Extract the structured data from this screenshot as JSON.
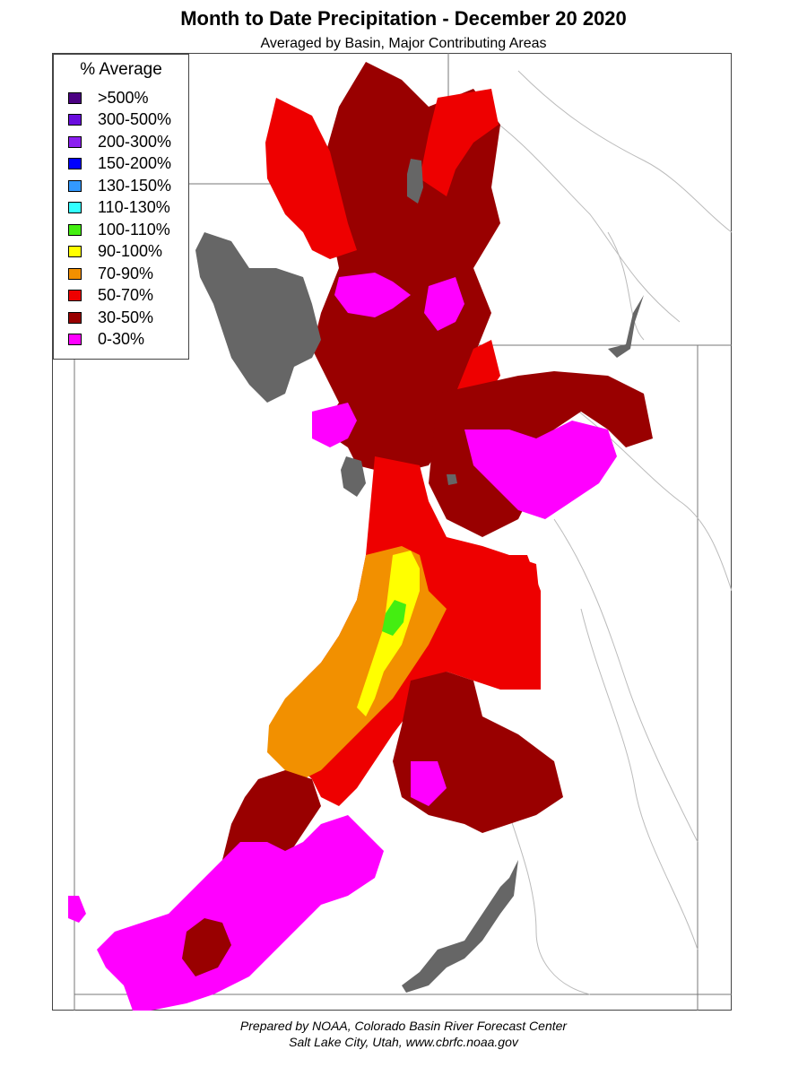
{
  "title": "Month to Date Precipitation - December 20 2020",
  "subtitle": "Averaged by Basin, Major Contributing Areas",
  "legend": {
    "title": "% Average",
    "items": [
      {
        "label": ">500%",
        "color": "#4b0082"
      },
      {
        "label": "300-500%",
        "color": "#6a0dde"
      },
      {
        "label": "200-300%",
        "color": "#8b1ff0"
      },
      {
        "label": "150-200%",
        "color": "#0000ff"
      },
      {
        "label": "130-150%",
        "color": "#3399ff"
      },
      {
        "label": "110-130%",
        "color": "#33ffff"
      },
      {
        "label": "100-110%",
        "color": "#44ee11"
      },
      {
        "label": "90-100%",
        "color": "#ffff00"
      },
      {
        "label": "70-90%",
        "color": "#f29000"
      },
      {
        "label": "50-70%",
        "color": "#ee0000"
      },
      {
        "label": "30-50%",
        "color": "#990000"
      },
      {
        "label": "0-30%",
        "color": "#ff00ff"
      }
    ]
  },
  "map_colors": {
    "lake": "#666666",
    "state_line": "#777777",
    "river": "#bbbbbb"
  },
  "footer": {
    "line1": "Prepared by NOAA, Colorado Basin River Forecast Center",
    "line2": "Salt Lake City, Utah, www.cbrfc.noaa.gov"
  }
}
